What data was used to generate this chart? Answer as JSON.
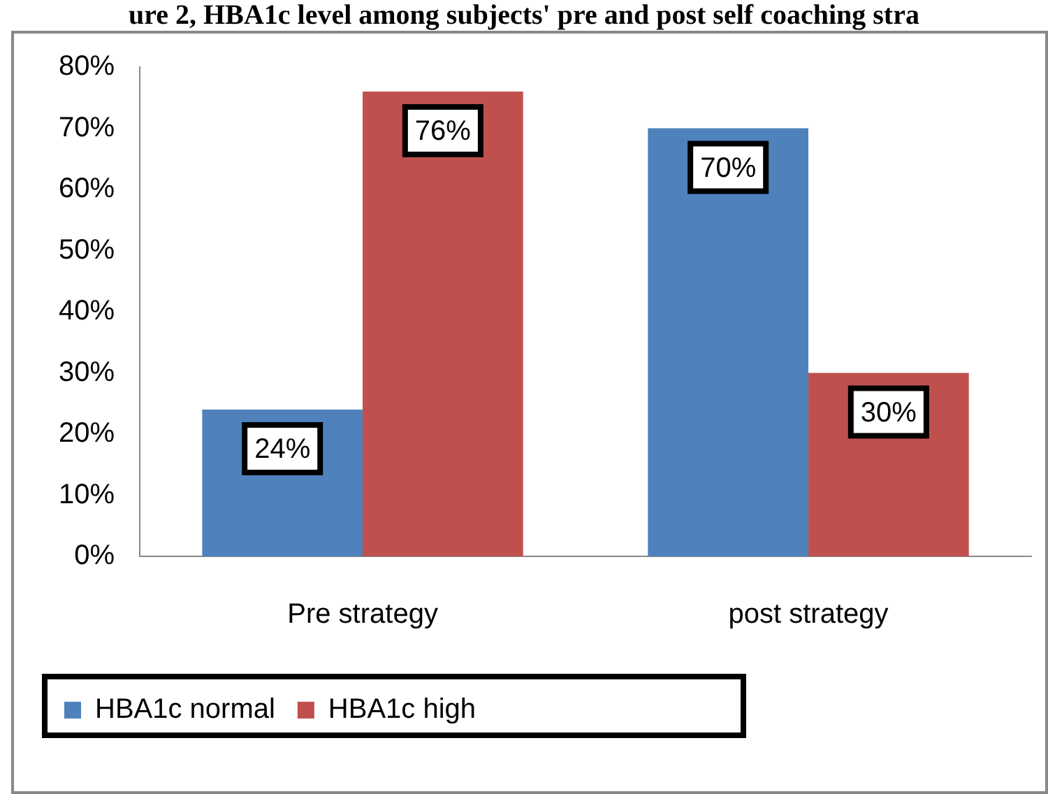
{
  "chart_data": {
    "type": "bar",
    "title": "ure 2, HBA1c level among subjects' pre and post self coaching stra",
    "categories": [
      "Pre strategy",
      "post strategy"
    ],
    "series": [
      {
        "name": "HBA1c normal",
        "color": "#4f81bd",
        "values": [
          24,
          70
        ],
        "value_labels": [
          "24%",
          "70%"
        ]
      },
      {
        "name": "HBA1c high",
        "color": "#c0504d",
        "values": [
          76,
          30
        ],
        "value_labels": [
          "76%",
          "30%"
        ]
      }
    ],
    "ylim": [
      0,
      80
    ],
    "yticks": [
      {
        "value": 0,
        "label": "0%"
      },
      {
        "value": 10,
        "label": "10%"
      },
      {
        "value": 20,
        "label": "20%"
      },
      {
        "value": 30,
        "label": "30%"
      },
      {
        "value": 40,
        "label": "40%"
      },
      {
        "value": 50,
        "label": "50%"
      },
      {
        "value": 60,
        "label": "60%"
      },
      {
        "value": 70,
        "label": "70%"
      },
      {
        "value": 80,
        "label": "80%"
      }
    ],
    "grid": false,
    "legend": "bottom left"
  }
}
